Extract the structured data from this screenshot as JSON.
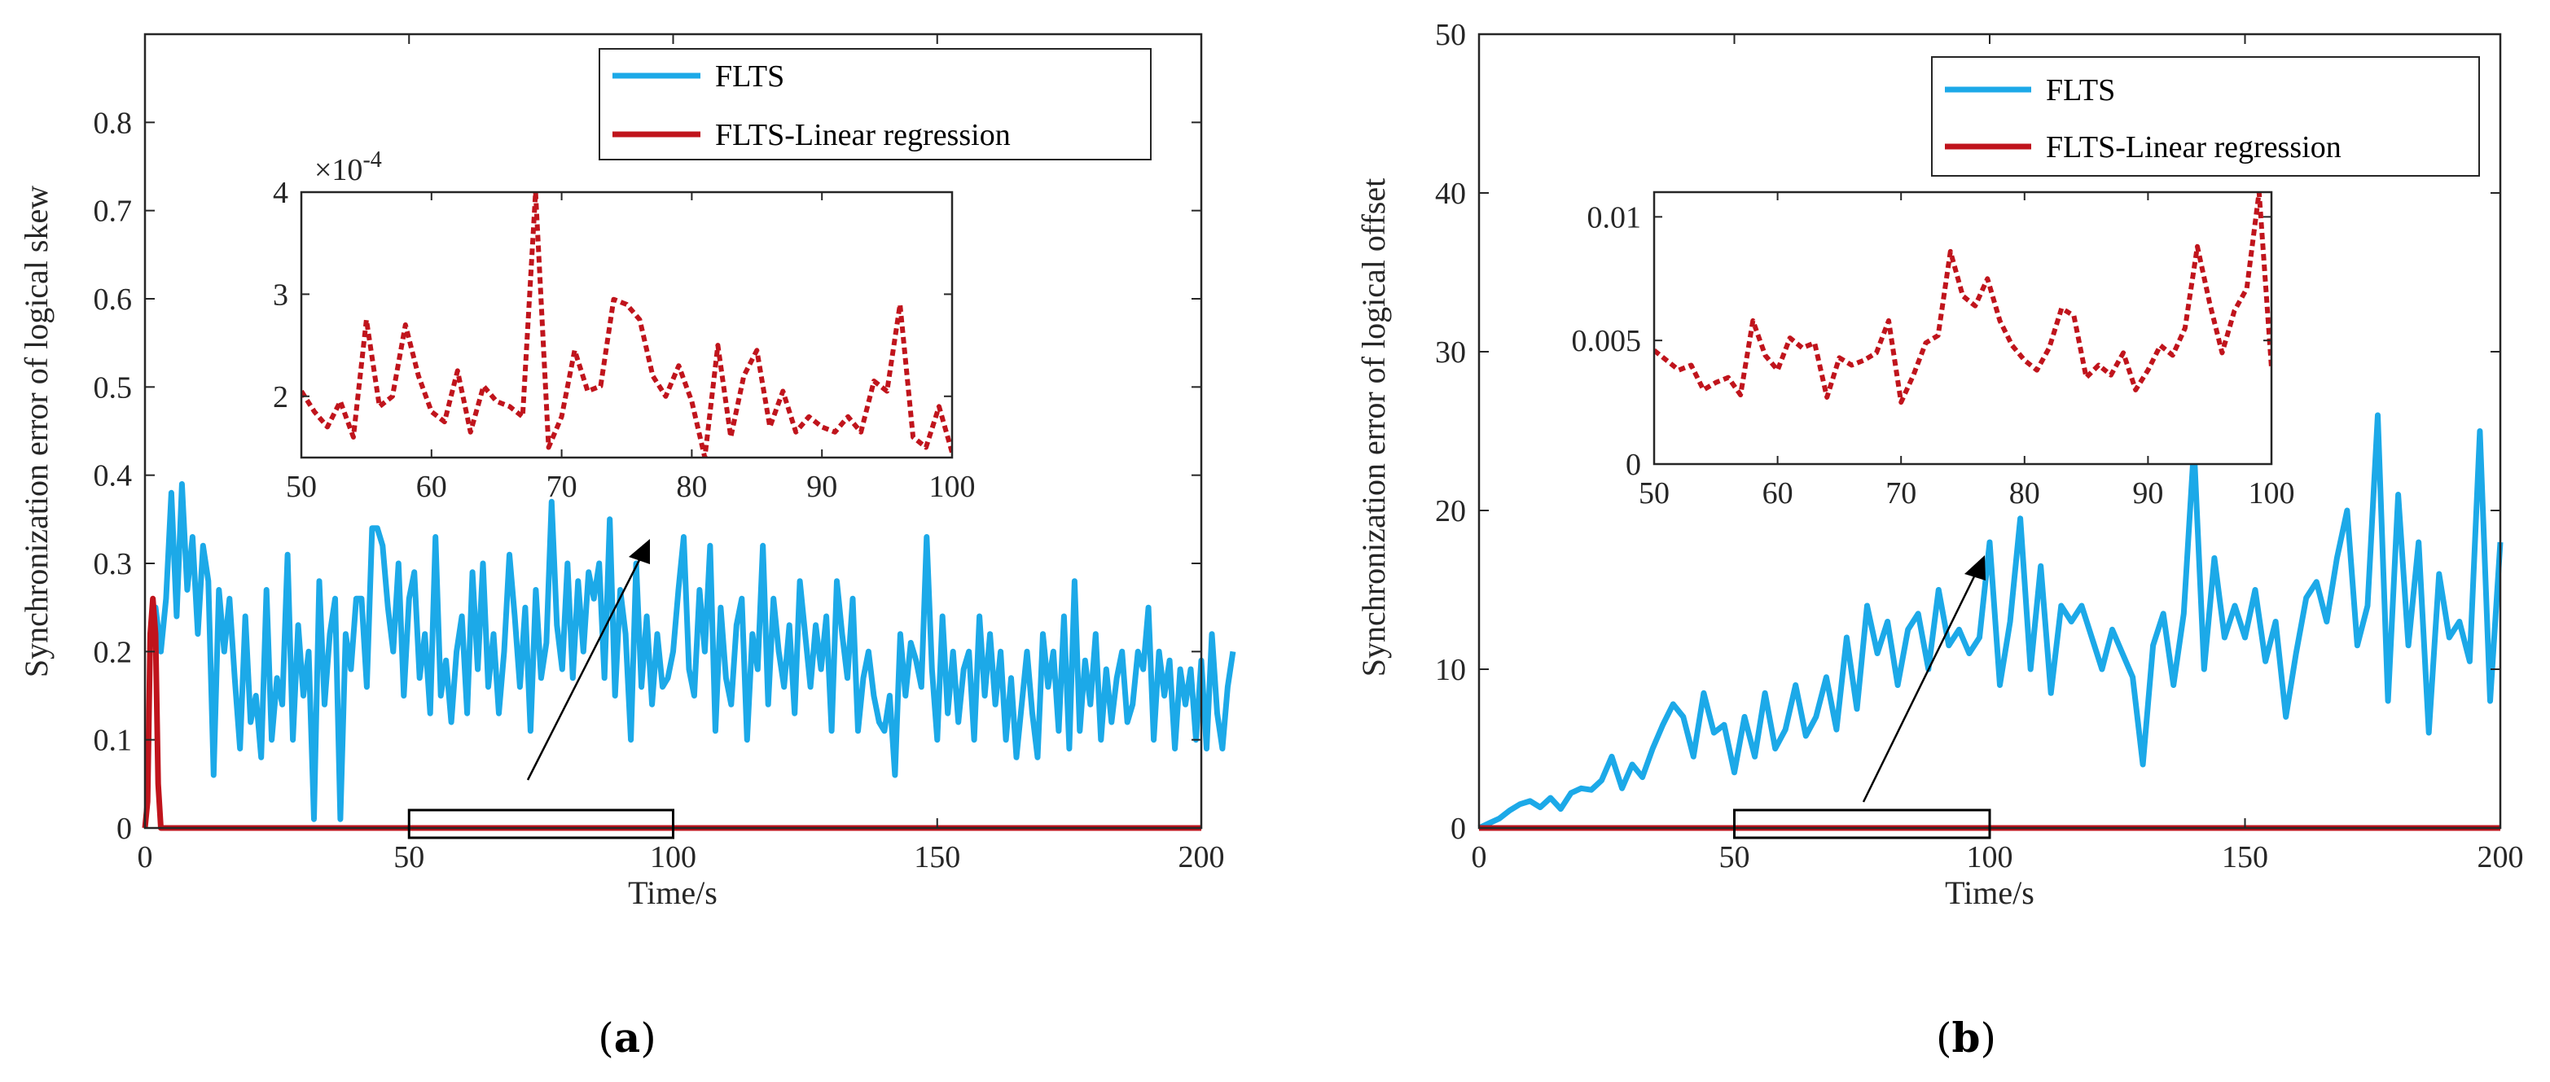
{
  "figure": {
    "panel_a_caption": "a",
    "panel_b_caption": "b"
  },
  "colors": {
    "flts": "#1CA9E8",
    "linreg": "#C0141C",
    "axis": "#262626",
    "grid_box": "#000000"
  },
  "chart_data": [
    {
      "id": "a",
      "type": "line",
      "title": "",
      "xlabel": "Time/s",
      "ylabel": "Synchronization error of logical skew",
      "xlim": [
        0,
        200
      ],
      "ylim": [
        0,
        0.9
      ],
      "xticks": [
        "0",
        "50",
        "100",
        "150",
        "200"
      ],
      "yticks": [
        "0",
        "0.1",
        "0.2",
        "0.3",
        "0.4",
        "0.5",
        "0.6",
        "0.7",
        "0.8"
      ],
      "legend": [
        "FLTS",
        "FLTS-Linear regression"
      ],
      "legend_position": "top-right",
      "zoom_box": [
        50,
        100
      ],
      "series": [
        {
          "name": "FLTS",
          "x_start": 1,
          "x_step": 1,
          "values": [
            0.22,
            0.25,
            0.2,
            0.26,
            0.38,
            0.24,
            0.39,
            0.27,
            0.33,
            0.22,
            0.32,
            0.28,
            0.06,
            0.27,
            0.2,
            0.26,
            0.17,
            0.09,
            0.24,
            0.12,
            0.15,
            0.08,
            0.27,
            0.1,
            0.17,
            0.14,
            0.31,
            0.1,
            0.23,
            0.15,
            0.2,
            0.01,
            0.28,
            0.14,
            0.22,
            0.26,
            0.01,
            0.22,
            0.18,
            0.26,
            0.26,
            0.16,
            0.34,
            0.34,
            0.32,
            0.25,
            0.2,
            0.3,
            0.15,
            0.26,
            0.29,
            0.17,
            0.22,
            0.13,
            0.33,
            0.15,
            0.19,
            0.12,
            0.2,
            0.24,
            0.13,
            0.29,
            0.18,
            0.3,
            0.16,
            0.22,
            0.13,
            0.2,
            0.31,
            0.24,
            0.16,
            0.25,
            0.11,
            0.27,
            0.17,
            0.21,
            0.37,
            0.23,
            0.18,
            0.3,
            0.17,
            0.28,
            0.2,
            0.29,
            0.26,
            0.3,
            0.17,
            0.35,
            0.15,
            0.27,
            0.22,
            0.1,
            0.3,
            0.16,
            0.24,
            0.14,
            0.22,
            0.16,
            0.17,
            0.2,
            0.27,
            0.33,
            0.18,
            0.15,
            0.27,
            0.2,
            0.32,
            0.11,
            0.25,
            0.17,
            0.14,
            0.23,
            0.26,
            0.1,
            0.22,
            0.18,
            0.32,
            0.14,
            0.26,
            0.2,
            0.16,
            0.23,
            0.13,
            0.28,
            0.22,
            0.16,
            0.23,
            0.18,
            0.24,
            0.11,
            0.28,
            0.22,
            0.17,
            0.26,
            0.11,
            0.17,
            0.2,
            0.15,
            0.12,
            0.11,
            0.15,
            0.06,
            0.22,
            0.15,
            0.21,
            0.19,
            0.16,
            0.33,
            0.18,
            0.1,
            0.24,
            0.13,
            0.2,
            0.12,
            0.18,
            0.2,
            0.1,
            0.24,
            0.15,
            0.22,
            0.14,
            0.2,
            0.1,
            0.17,
            0.08,
            0.14,
            0.2,
            0.13,
            0.08,
            0.22,
            0.16,
            0.2,
            0.11,
            0.24,
            0.09,
            0.28,
            0.11,
            0.19,
            0.14,
            0.22,
            0.1,
            0.18,
            0.12,
            0.17,
            0.2,
            0.12,
            0.14,
            0.2,
            0.18,
            0.25,
            0.1,
            0.2,
            0.15,
            0.19,
            0.09,
            0.18,
            0.14,
            0.18,
            0.1,
            0.19,
            0.09,
            0.22,
            0.13,
            0.09,
            0.16,
            0.2
          ]
        },
        {
          "name": "FLTS-Linear regression",
          "x": [
            0,
            0.5,
            1,
            1.5,
            2,
            2.5,
            3,
            3.5,
            4,
            200
          ],
          "values": [
            0,
            0.03,
            0.22,
            0.26,
            0.22,
            0.05,
            0,
            0,
            0,
            0
          ]
        }
      ],
      "inset": {
        "xlim": [
          50,
          100
        ],
        "ylim": [
          1.4,
          4
        ],
        "xticks": [
          "50",
          "60",
          "70",
          "80",
          "90",
          "100"
        ],
        "yticks": [
          "2",
          "3",
          "4"
        ],
        "multiplier": "×10",
        "multiplier_exp": "-4",
        "series": {
          "name": "FLTS-Linear regression",
          "x_start": 50,
          "x_step": 1,
          "values": [
            2.05,
            1.85,
            1.7,
            1.95,
            1.6,
            2.75,
            1.9,
            2.0,
            2.7,
            2.2,
            1.85,
            1.75,
            2.25,
            1.65,
            2.1,
            1.95,
            1.9,
            1.8,
            4.0,
            1.5,
            1.8,
            2.45,
            2.05,
            2.1,
            2.95,
            2.9,
            2.75,
            2.2,
            2.0,
            2.3,
            1.95,
            1.4,
            2.5,
            1.6,
            2.2,
            2.45,
            1.7,
            2.05,
            1.65,
            1.8,
            1.7,
            1.65,
            1.8,
            1.65,
            2.15,
            2.05,
            2.9,
            1.6,
            1.5,
            1.9,
            1.45
          ]
        }
      }
    },
    {
      "id": "b",
      "type": "line",
      "title": "",
      "xlabel": "Time/s",
      "ylabel": "Synchronization error of logical offset",
      "xlim": [
        0,
        200
      ],
      "ylim": [
        0,
        50
      ],
      "xticks": [
        "0",
        "50",
        "100",
        "150",
        "200"
      ],
      "yticks": [
        "0",
        "10",
        "20",
        "30",
        "40",
        "50"
      ],
      "legend": [
        "FLTS",
        "FLTS-Linear regression"
      ],
      "legend_position": "top-right",
      "zoom_box": [
        50,
        100
      ],
      "series": [
        {
          "name": "FLTS",
          "x": [
            0,
            2,
            4,
            6,
            8,
            10,
            12,
            14,
            16,
            18,
            20,
            22,
            24,
            26,
            28,
            30,
            32,
            34,
            36,
            38,
            40,
            42,
            44,
            46,
            48,
            50,
            52,
            54,
            56,
            58,
            60,
            62,
            64,
            66,
            68,
            70,
            72,
            74,
            76,
            78,
            80,
            82,
            84,
            86,
            88,
            90,
            92,
            94,
            96,
            98,
            100,
            102,
            104,
            106,
            108,
            110,
            112,
            114,
            116,
            118,
            120,
            122,
            124,
            126,
            128,
            130,
            132,
            134,
            136,
            138,
            140,
            142,
            144,
            146,
            148,
            150,
            152,
            154,
            156,
            158,
            160,
            162,
            164,
            166,
            168,
            170,
            172,
            174,
            176,
            178,
            180,
            182,
            184,
            186,
            188,
            190,
            192,
            194,
            196,
            198,
            200
          ],
          "values": [
            0,
            0.3,
            0.6,
            1.1,
            1.5,
            1.7,
            1.3,
            1.9,
            1.2,
            2.2,
            2.5,
            2.4,
            3.0,
            4.5,
            2.5,
            4.0,
            3.2,
            5.0,
            6.5,
            7.8,
            7.0,
            4.5,
            8.5,
            6.0,
            6.5,
            3.5,
            7.0,
            4.5,
            8.5,
            5.0,
            6.2,
            9.0,
            5.8,
            7.0,
            9.5,
            6.2,
            12.0,
            7.5,
            14.0,
            11.0,
            13.0,
            9.0,
            12.5,
            13.5,
            10.0,
            15.0,
            11.5,
            12.5,
            11.0,
            12.0,
            18.0,
            9.0,
            13.0,
            19.5,
            10.0,
            16.5,
            8.5,
            14.0,
            13.0,
            14.0,
            12.0,
            10.0,
            12.5,
            11.0,
            9.5,
            4.0,
            11.5,
            13.5,
            9.0,
            13.5,
            24.0,
            10.0,
            17.0,
            12.0,
            14.0,
            12.0,
            15.0,
            10.5,
            13.0,
            7.0,
            11.0,
            14.5,
            15.5,
            13.0,
            17.0,
            20.0,
            11.5,
            14.0,
            26.0,
            8.0,
            21.0,
            11.5,
            18.0,
            6.0,
            16.0,
            12.0,
            13.0,
            10.5,
            25.0,
            8.0,
            18.0
          ]
        },
        {
          "name": "FLTS-Linear regression",
          "x": [
            0,
            200
          ],
          "values": [
            0,
            0
          ]
        }
      ],
      "inset": {
        "xlim": [
          50,
          100
        ],
        "ylim": [
          0,
          0.011
        ],
        "xticks": [
          "50",
          "60",
          "70",
          "80",
          "90",
          "100"
        ],
        "yticks": [
          "0",
          "0.005",
          "0.01"
        ],
        "series": {
          "name": "FLTS-Linear regression",
          "x_start": 50,
          "x_step": 1,
          "values": [
            0.0046,
            0.0042,
            0.0038,
            0.004,
            0.003,
            0.0033,
            0.0035,
            0.0028,
            0.0058,
            0.0044,
            0.0038,
            0.0051,
            0.0047,
            0.0049,
            0.0027,
            0.0043,
            0.004,
            0.0042,
            0.0045,
            0.0058,
            0.0025,
            0.0036,
            0.0049,
            0.0052,
            0.0086,
            0.0068,
            0.0064,
            0.0075,
            0.0058,
            0.0048,
            0.0042,
            0.0038,
            0.0047,
            0.0063,
            0.006,
            0.0035,
            0.004,
            0.0036,
            0.0045,
            0.003,
            0.0038,
            0.0048,
            0.0044,
            0.0055,
            0.0088,
            0.0065,
            0.0045,
            0.0062,
            0.0071,
            0.011,
            0.0039
          ]
        }
      }
    }
  ]
}
